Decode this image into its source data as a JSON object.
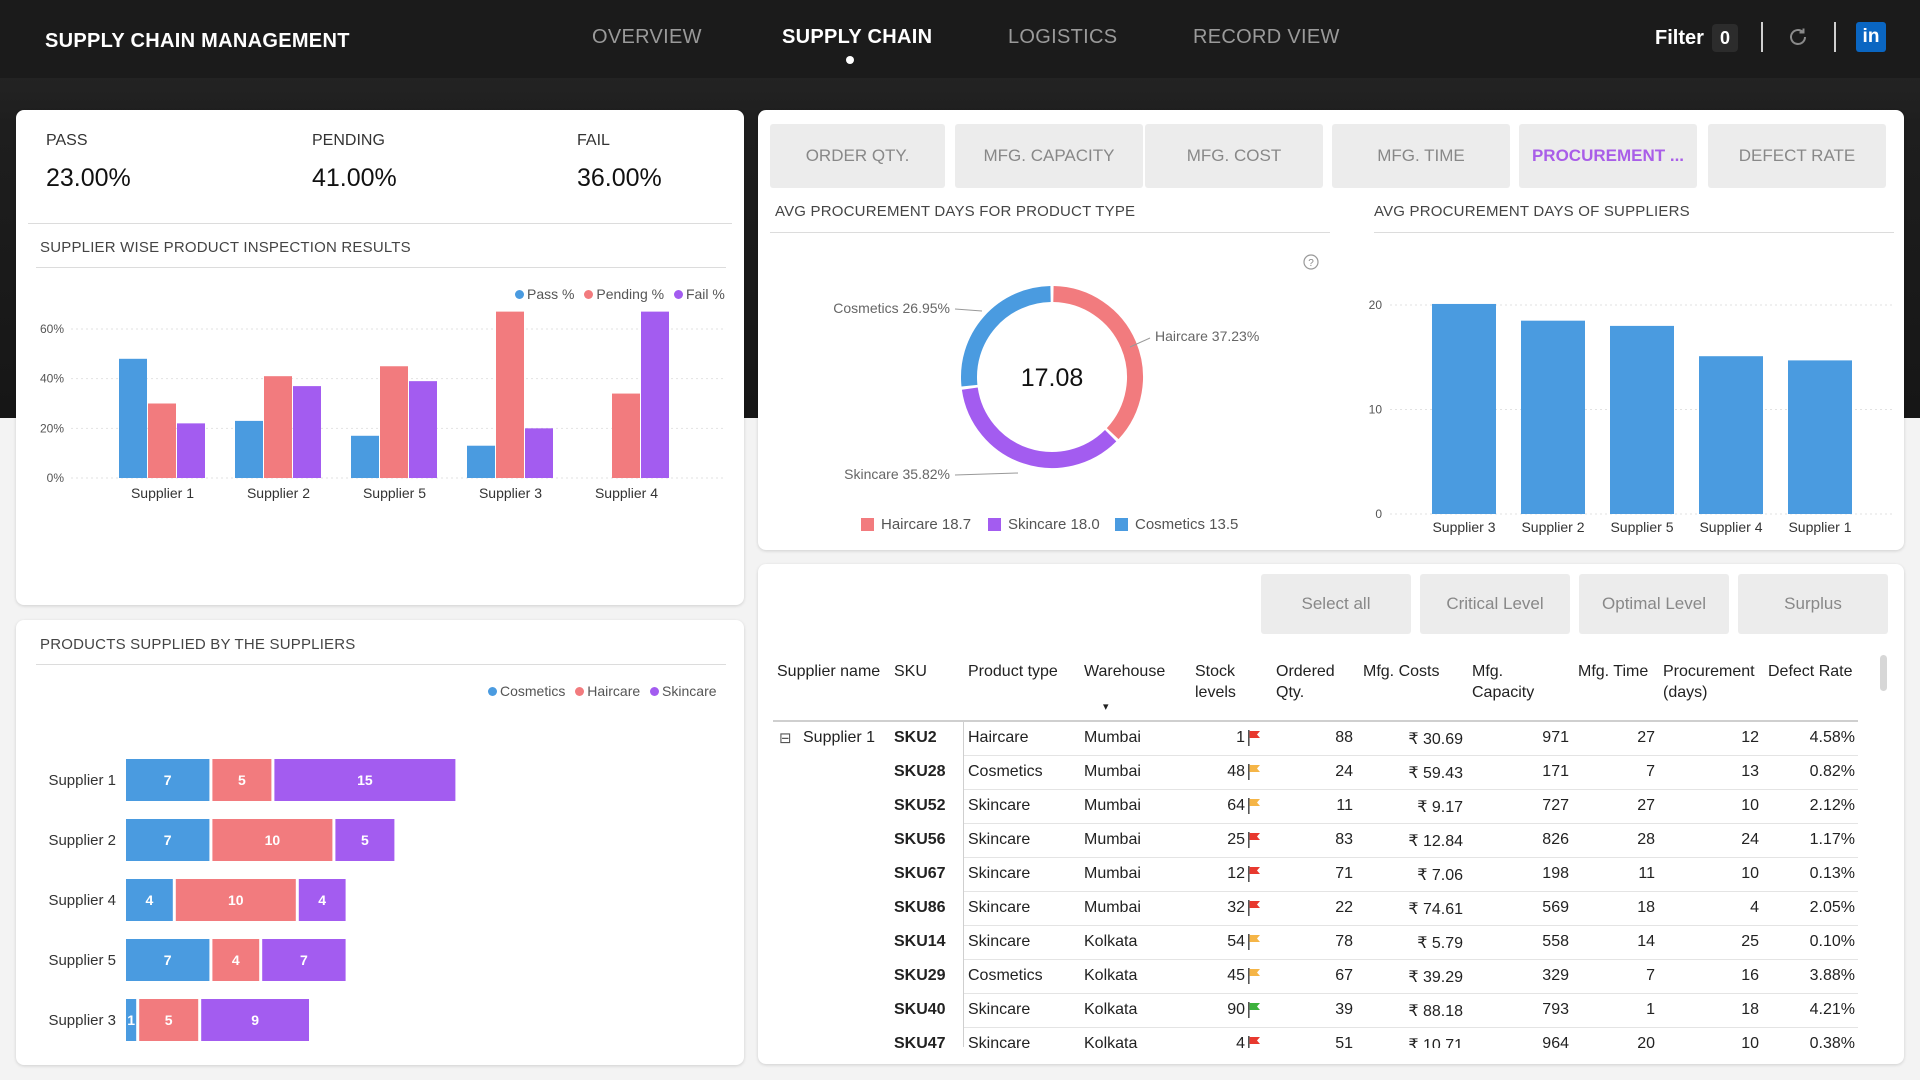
{
  "header": {
    "title": "SUPPLY CHAIN MANAGEMENT",
    "tabs": [
      {
        "label": "OVERVIEW",
        "active": false
      },
      {
        "label": "SUPPLY CHAIN",
        "active": true
      },
      {
        "label": "LOGISTICS",
        "active": false
      },
      {
        "label": "RECORD VIEW",
        "active": false
      }
    ],
    "filter_label": "Filter",
    "filter_count": "0",
    "icons": [
      "refresh-icon",
      "linkedin-icon"
    ],
    "linkedin_glyph": "in"
  },
  "kpis": [
    {
      "label": "PASS",
      "value": "23.00%"
    },
    {
      "label": "PENDING",
      "value": "41.00%"
    },
    {
      "label": "FAIL",
      "value": "36.00%"
    }
  ],
  "colors": {
    "blue": "#4a9be0",
    "pink": "#f27b7e",
    "purple": "#a35cf0",
    "green": "#3db23d",
    "orange": "#f5b547",
    "red": "#e8392f"
  },
  "inspection": {
    "title": "SUPPLIER WISE PRODUCT INSPECTION RESULTS",
    "legend": [
      "Pass %",
      "Pending %",
      "Fail %"
    ]
  },
  "supplied": {
    "title": "PRODUCTS SUPPLIED BY THE SUPPLIERS",
    "legend": [
      "Cosmetics",
      "Haircare",
      "Skincare"
    ]
  },
  "metric_tabs": [
    {
      "label": "ORDER QTY.",
      "active": false
    },
    {
      "label": "MFG. CAPACITY",
      "active": false
    },
    {
      "label": "MFG. COST",
      "active": false
    },
    {
      "label": "MFG. TIME",
      "active": false
    },
    {
      "label": "PROCUREMENT ...",
      "active": true
    },
    {
      "label": "DEFECT RATE",
      "active": false
    }
  ],
  "donut": {
    "title": "AVG PROCUREMENT DAYS FOR PRODUCT TYPE",
    "center_value": "17.08",
    "help_glyph": "?",
    "legend": [
      "Haircare 18.7",
      "Skincare 18.0",
      "Cosmetics 13.5"
    ]
  },
  "supplier_bars": {
    "title": "AVG PROCUREMENT DAYS OF SUPPLIERS"
  },
  "stock_buttons": [
    "Select all",
    "Critical Level",
    "Optimal Level",
    "Surplus"
  ],
  "table": {
    "columns": [
      "Supplier name",
      "SKU",
      "Product type",
      "Warehouse",
      "Stock levels",
      "Ordered Qty.",
      "Mfg. Costs",
      "Mfg. Capacity",
      "Mfg. Time",
      "Procurement (days)",
      "Defect Rate"
    ],
    "group": "Supplier 1",
    "expand_glyph": "⊟",
    "sort_glyph": "▾",
    "rows": [
      {
        "sku": "SKU2",
        "type": "Haircare",
        "warehouse": "Mumbai",
        "stock": "1",
        "flag": "red",
        "ordered": "88",
        "cost": "₹ 30.69",
        "capacity": "971",
        "time": "27",
        "procurement": "12",
        "defect": "4.58%"
      },
      {
        "sku": "SKU28",
        "type": "Cosmetics",
        "warehouse": "Mumbai",
        "stock": "48",
        "flag": "orange",
        "ordered": "24",
        "cost": "₹ 59.43",
        "capacity": "171",
        "time": "7",
        "procurement": "13",
        "defect": "0.82%"
      },
      {
        "sku": "SKU52",
        "type": "Skincare",
        "warehouse": "Mumbai",
        "stock": "64",
        "flag": "orange",
        "ordered": "11",
        "cost": "₹ 9.17",
        "capacity": "727",
        "time": "27",
        "procurement": "10",
        "defect": "2.12%"
      },
      {
        "sku": "SKU56",
        "type": "Skincare",
        "warehouse": "Mumbai",
        "stock": "25",
        "flag": "red",
        "ordered": "83",
        "cost": "₹ 12.84",
        "capacity": "826",
        "time": "28",
        "procurement": "24",
        "defect": "1.17%"
      },
      {
        "sku": "SKU67",
        "type": "Skincare",
        "warehouse": "Mumbai",
        "stock": "12",
        "flag": "red",
        "ordered": "71",
        "cost": "₹ 7.06",
        "capacity": "198",
        "time": "11",
        "procurement": "10",
        "defect": "0.13%"
      },
      {
        "sku": "SKU86",
        "type": "Skincare",
        "warehouse": "Mumbai",
        "stock": "32",
        "flag": "red",
        "ordered": "22",
        "cost": "₹ 74.61",
        "capacity": "569",
        "time": "18",
        "procurement": "4",
        "defect": "2.05%"
      },
      {
        "sku": "SKU14",
        "type": "Skincare",
        "warehouse": "Kolkata",
        "stock": "54",
        "flag": "orange",
        "ordered": "78",
        "cost": "₹ 5.79",
        "capacity": "558",
        "time": "14",
        "procurement": "25",
        "defect": "0.10%"
      },
      {
        "sku": "SKU29",
        "type": "Cosmetics",
        "warehouse": "Kolkata",
        "stock": "45",
        "flag": "orange",
        "ordered": "67",
        "cost": "₹ 39.29",
        "capacity": "329",
        "time": "7",
        "procurement": "16",
        "defect": "3.88%"
      },
      {
        "sku": "SKU40",
        "type": "Skincare",
        "warehouse": "Kolkata",
        "stock": "90",
        "flag": "green",
        "ordered": "39",
        "cost": "₹ 88.18",
        "capacity": "793",
        "time": "1",
        "procurement": "18",
        "defect": "4.21%"
      },
      {
        "sku": "SKU47",
        "type": "Skincare",
        "warehouse": "Kolkata",
        "stock": "4",
        "flag": "red",
        "ordered": "51",
        "cost": "₹ 10.71",
        "capacity": "964",
        "time": "20",
        "procurement": "10",
        "defect": "0.38%"
      }
    ]
  },
  "chart_data": [
    {
      "type": "bar",
      "title": "SUPPLIER WISE PRODUCT INSPECTION RESULTS",
      "categories": [
        "Supplier 1",
        "Supplier 2",
        "Supplier 5",
        "Supplier 3",
        "Supplier 4"
      ],
      "series": [
        {
          "name": "Pass %",
          "values": [
            48,
            23,
            17,
            13,
            0
          ]
        },
        {
          "name": "Pending %",
          "values": [
            30,
            41,
            45,
            67,
            34
          ]
        },
        {
          "name": "Fail %",
          "values": [
            22,
            37,
            39,
            20,
            67
          ]
        }
      ],
      "y_ticks": [
        "0%",
        "20%",
        "40%",
        "60%"
      ],
      "ylim": [
        0,
        70
      ],
      "legend_position": "top-right"
    },
    {
      "type": "bar",
      "orientation": "horizontal-stacked",
      "title": "PRODUCTS SUPPLIED BY THE SUPPLIERS",
      "categories": [
        "Supplier 1",
        "Supplier 2",
        "Supplier 4",
        "Supplier 5",
        "Supplier 3"
      ],
      "series": [
        {
          "name": "Cosmetics",
          "values": [
            7,
            7,
            4,
            7,
            1
          ]
        },
        {
          "name": "Haircare",
          "values": [
            5,
            10,
            10,
            4,
            5
          ]
        },
        {
          "name": "Skincare",
          "values": [
            15,
            5,
            4,
            7,
            9
          ]
        }
      ],
      "legend_position": "top-right"
    },
    {
      "type": "pie",
      "title": "AVG PROCUREMENT DAYS FOR PRODUCT TYPE",
      "center_value": "17.08",
      "slices": [
        {
          "name": "Haircare",
          "percent": 37.23,
          "label": "Haircare 37.23%",
          "value": 18.7
        },
        {
          "name": "Skincare",
          "percent": 35.82,
          "label": "Skincare 35.82%",
          "value": 18.0
        },
        {
          "name": "Cosmetics",
          "percent": 26.95,
          "label": "Cosmetics 26.95%",
          "value": 13.5
        }
      ],
      "legend_position": "bottom"
    },
    {
      "type": "bar",
      "title": "AVG PROCUREMENT DAYS OF SUPPLIERS",
      "categories": [
        "Supplier 3",
        "Supplier 2",
        "Supplier 5",
        "Supplier 4",
        "Supplier 1"
      ],
      "values": [
        20.1,
        18.5,
        18.0,
        15.1,
        14.7
      ],
      "y_ticks": [
        "0",
        "10",
        "20"
      ],
      "ylim": [
        0,
        22
      ]
    }
  ]
}
